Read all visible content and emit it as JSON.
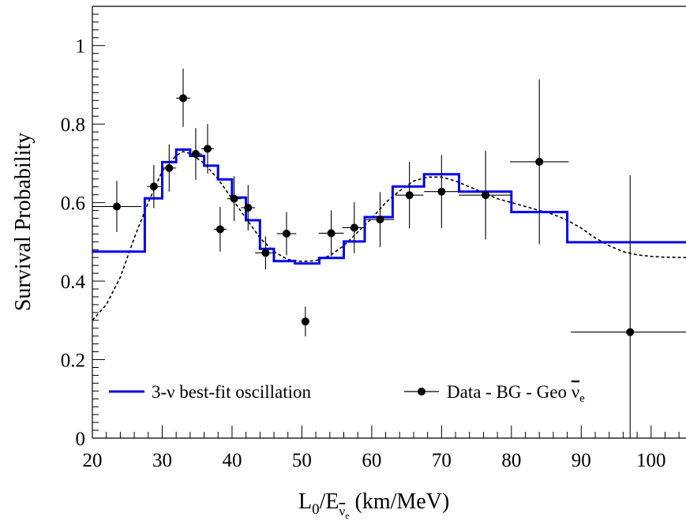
{
  "chart_data": {
    "type": "scatter",
    "xlabel": "L0/Ev̄e (km/MeV)",
    "xlabel_parts": {
      "main": "L",
      "sub0": "0",
      "slash": "/E",
      "sub_nu": "ν",
      "sub_e": "e",
      "units": " (km/MeV)"
    },
    "ylabel": "Survival Probability",
    "xlim": [
      20,
      105
    ],
    "ylim": [
      0,
      1.1
    ],
    "x_ticks": [
      20,
      30,
      40,
      50,
      60,
      70,
      80,
      90,
      100
    ],
    "y_ticks": [
      0,
      0.2,
      0.4,
      0.6,
      0.8,
      1
    ],
    "y_tick_labels": [
      "0",
      "0.2",
      "0.4",
      "0.6",
      "0.8",
      "1"
    ],
    "grid": false,
    "legend_placement": "bottom",
    "legend": {
      "fit_label": "3-ν best-fit oscillation",
      "data_label_prefix": "Data - BG - Geo ",
      "data_label_nu": "ν",
      "data_label_sub": "e"
    },
    "series": [
      {
        "name": "3-ν best-fit oscillation",
        "kind": "step",
        "color": "#0000ee",
        "edges": [
          20,
          27.5,
          30,
          32,
          34,
          36,
          38,
          40,
          42,
          44,
          46,
          49,
          52.5,
          56,
          59,
          63,
          67.5,
          72.5,
          80,
          88,
          105
        ],
        "values": [
          0.475,
          0.611,
          0.703,
          0.735,
          0.719,
          0.694,
          0.659,
          0.613,
          0.555,
          0.482,
          0.451,
          0.445,
          0.459,
          0.501,
          0.563,
          0.641,
          0.672,
          0.628,
          0.576,
          0.499
        ]
      },
      {
        "name": "dashed-curve",
        "kind": "line",
        "color": "#000000",
        "x": [
          20,
          22,
          24,
          26,
          28,
          30,
          32,
          33,
          34,
          36,
          38,
          40,
          42,
          44,
          46,
          48,
          50,
          52,
          54,
          56,
          58,
          60,
          62,
          64,
          66,
          68,
          70,
          72,
          74,
          76,
          78,
          80,
          82,
          84,
          86,
          88,
          90,
          92,
          94,
          96,
          98,
          100,
          102,
          105
        ],
        "y": [
          0.3,
          0.34,
          0.41,
          0.51,
          0.6,
          0.68,
          0.72,
          0.73,
          0.725,
          0.7,
          0.66,
          0.61,
          0.56,
          0.51,
          0.475,
          0.455,
          0.45,
          0.452,
          0.465,
          0.49,
          0.525,
          0.56,
          0.6,
          0.63,
          0.655,
          0.665,
          0.665,
          0.655,
          0.64,
          0.625,
          0.61,
          0.6,
          0.59,
          0.58,
          0.57,
          0.555,
          0.535,
          0.51,
          0.49,
          0.475,
          0.467,
          0.463,
          0.461,
          0.46
        ]
      },
      {
        "name": "Data - BG - Geo ν̄e",
        "kind": "points",
        "color": "#000000",
        "points": [
          {
            "x": 23.5,
            "y": 0.59,
            "xerr": [
              3.5,
              3.5
            ],
            "yerr": [
              0.065,
              0.065
            ]
          },
          {
            "x": 28.8,
            "y": 0.641,
            "xerr": [
              1.0,
              1.0
            ],
            "yerr": [
              0.055,
              0.055
            ]
          },
          {
            "x": 31.0,
            "y": 0.688,
            "xerr": [
              1.0,
              1.0
            ],
            "yerr": [
              0.06,
              0.06
            ]
          },
          {
            "x": 33.0,
            "y": 0.866,
            "xerr": [
              1.0,
              1.0
            ],
            "yerr": [
              0.073,
              0.075
            ]
          },
          {
            "x": 34.8,
            "y": 0.724,
            "xerr": [
              0.9,
              0.9
            ],
            "yerr": [
              0.066,
              0.066
            ]
          },
          {
            "x": 36.5,
            "y": 0.737,
            "xerr": [
              0.9,
              0.9
            ],
            "yerr": [
              0.063,
              0.063
            ]
          },
          {
            "x": 38.3,
            "y": 0.532,
            "xerr": [
              0.9,
              0.9
            ],
            "yerr": [
              0.057,
              0.057
            ]
          },
          {
            "x": 40.3,
            "y": 0.61,
            "xerr": [
              1.0,
              1.0
            ],
            "yerr": [
              0.057,
              0.057
            ]
          },
          {
            "x": 42.3,
            "y": 0.587,
            "xerr": [
              1.0,
              1.0
            ],
            "yerr": [
              0.058,
              0.058
            ]
          },
          {
            "x": 44.8,
            "y": 0.472,
            "xerr": [
              1.5,
              1.5
            ],
            "yerr": [
              0.042,
              0.042
            ]
          },
          {
            "x": 47.8,
            "y": 0.521,
            "xerr": [
              1.4,
              1.4
            ],
            "yerr": [
              0.055,
              0.055
            ]
          },
          {
            "x": 50.5,
            "y": 0.297,
            "xerr": [
              0,
              0
            ],
            "yerr": [
              0.038,
              0.038
            ]
          },
          {
            "x": 54.2,
            "y": 0.522,
            "xerr": [
              1.8,
              1.8
            ],
            "yerr": [
              0.058,
              0.058
            ]
          },
          {
            "x": 57.5,
            "y": 0.536,
            "xerr": [
              1.7,
              1.7
            ],
            "yerr": [
              0.065,
              0.065
            ]
          },
          {
            "x": 61.2,
            "y": 0.557,
            "xerr": [
              2.0,
              2.0
            ],
            "yerr": [
              0.07,
              0.07
            ]
          },
          {
            "x": 65.4,
            "y": 0.619,
            "xerr": [
              2.0,
              2.0
            ],
            "yerr": [
              0.085,
              0.085
            ]
          },
          {
            "x": 70.0,
            "y": 0.628,
            "xerr": [
              2.5,
              2.5
            ],
            "yerr": [
              0.093,
              0.093
            ]
          },
          {
            "x": 76.3,
            "y": 0.619,
            "xerr": [
              3.8,
              3.8
            ],
            "yerr": [
              0.113,
              0.113
            ]
          },
          {
            "x": 84.0,
            "y": 0.704,
            "xerr": [
              4.2,
              4.2
            ],
            "yerr": [
              0.21,
              0.21
            ]
          },
          {
            "x": 97.0,
            "y": 0.27,
            "xerr": [
              8.5,
              8.5
            ],
            "yerr": [
              0.4,
              0.4
            ]
          }
        ]
      }
    ]
  }
}
